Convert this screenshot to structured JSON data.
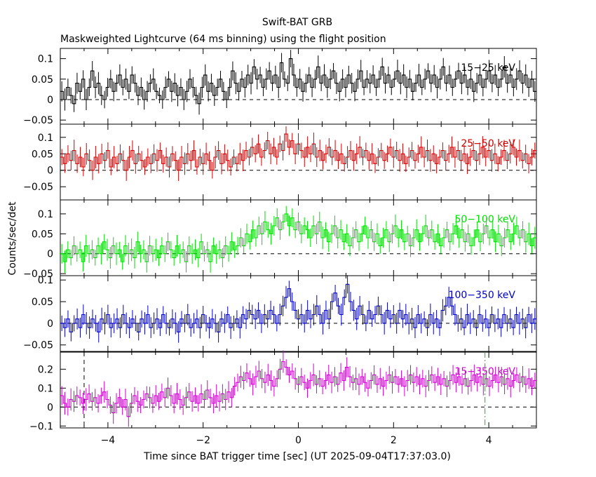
{
  "chart_data": {
    "type": "line",
    "title": "Swift-BAT GRB",
    "subtitle": "Maskweighted Lightcurve (64 ms binning) using the flight position",
    "xlabel": "Time since BAT trigger time [sec] (UT 2025-09-04T17:37:03.0)",
    "ylabel": "Counts/sec/det",
    "xlim": [
      -5,
      5
    ],
    "x_ticks": [
      -4,
      -2,
      0,
      2,
      4
    ],
    "x_tick_labels": [
      "−4",
      "−2",
      "0",
      "2",
      "4"
    ],
    "bin_width_s": 0.064,
    "markers": [
      {
        "x": -4.5,
        "panel": 4,
        "style": "dashed",
        "color": "#000000"
      },
      {
        "x": 3.92,
        "panel": 4,
        "style": "dash-dot",
        "color": "#00c800"
      }
    ],
    "panels": [
      {
        "name": "15−25 keV",
        "color": "#000000",
        "ylim": [
          -0.06,
          0.125
        ],
        "y_ticks": [
          -0.05,
          0,
          0.05,
          0.1
        ],
        "y_tick_labels": [
          "−0.05",
          "0",
          "0.05",
          "0.1"
        ],
        "values": [
          0.02,
          0.0,
          0.03,
          0.01,
          -0.01,
          0.04,
          0.02,
          0.05,
          0.0,
          0.03,
          0.07,
          0.03,
          0.04,
          0.01,
          0.0,
          0.03,
          0.05,
          0.02,
          0.04,
          0.06,
          0.03,
          0.05,
          0.02,
          0.06,
          0.04,
          0.01,
          0.03,
          0.0,
          0.02,
          0.04,
          0.05,
          0.02,
          0.01,
          0.0,
          0.03,
          0.05,
          0.02,
          0.04,
          0.01,
          0.03,
          0.0,
          0.02,
          0.05,
          0.03,
          0.01,
          -0.01,
          0.03,
          0.06,
          0.02,
          0.04,
          0.01,
          0.03,
          0.05,
          0.02,
          0.0,
          0.03,
          0.07,
          0.04,
          0.02,
          0.05,
          0.03,
          0.06,
          0.04,
          0.08,
          0.05,
          0.06,
          0.03,
          0.05,
          0.07,
          0.04,
          0.06,
          0.03,
          0.09,
          0.05,
          0.04,
          0.1,
          0.06,
          0.03,
          0.05,
          0.02,
          0.04,
          0.06,
          0.03,
          0.05,
          0.08,
          0.04,
          0.06,
          0.03,
          0.05,
          0.07,
          0.04,
          0.02,
          0.05,
          0.03,
          0.06,
          0.04,
          0.02,
          0.05,
          0.07,
          0.03,
          0.05,
          0.04,
          0.06,
          0.03,
          0.05,
          0.08,
          0.04,
          0.06,
          0.03,
          0.05,
          0.07,
          0.04,
          0.06,
          0.03,
          0.05,
          0.02,
          0.04,
          0.06,
          0.03,
          0.05,
          0.07,
          0.04,
          0.06,
          0.03,
          0.05,
          0.08,
          0.04,
          0.06,
          0.03,
          0.05,
          0.07,
          0.04,
          0.06,
          0.03,
          0.05,
          0.02,
          0.04,
          0.06,
          0.03,
          0.05,
          0.07,
          0.04,
          0.06,
          0.03,
          0.05,
          0.08,
          0.04,
          0.06,
          0.03,
          0.05,
          0.07,
          0.04,
          0.06,
          0.03,
          0.05,
          0.02
        ]
      },
      {
        "name": "25−50 keV",
        "color": "#d00000",
        "ylim": [
          -0.09,
          0.14
        ],
        "y_ticks": [
          -0.05,
          0,
          0.05,
          0.1
        ],
        "y_tick_labels": [
          "−0.05",
          "0",
          "0.05",
          "0.1"
        ],
        "values": [
          0.04,
          0.02,
          0.05,
          0.03,
          0.06,
          0.02,
          0.04,
          0.01,
          0.05,
          0.03,
          0.0,
          0.04,
          0.02,
          0.05,
          0.03,
          0.06,
          0.01,
          0.04,
          0.02,
          0.05,
          0.03,
          0.0,
          0.04,
          0.06,
          0.02,
          0.05,
          0.03,
          0.01,
          0.04,
          0.02,
          0.05,
          0.03,
          0.06,
          0.02,
          0.04,
          0.01,
          0.05,
          0.03,
          0.0,
          0.04,
          0.02,
          0.05,
          0.03,
          0.06,
          0.01,
          0.04,
          0.02,
          0.05,
          0.03,
          0.0,
          0.04,
          0.06,
          0.02,
          0.05,
          0.03,
          0.01,
          0.04,
          0.02,
          0.05,
          0.03,
          0.06,
          0.04,
          0.07,
          0.05,
          0.08,
          0.04,
          0.06,
          0.09,
          0.05,
          0.07,
          0.04,
          0.08,
          0.06,
          0.11,
          0.07,
          0.09,
          0.05,
          0.08,
          0.06,
          0.04,
          0.07,
          0.05,
          0.08,
          0.04,
          0.06,
          0.03,
          0.05,
          0.07,
          0.04,
          0.06,
          0.03,
          0.05,
          0.02,
          0.04,
          0.06,
          0.03,
          0.05,
          0.07,
          0.04,
          0.06,
          0.03,
          0.05,
          0.02,
          0.04,
          0.06,
          0.03,
          0.05,
          0.07,
          0.04,
          0.06,
          0.03,
          0.05,
          0.02,
          0.04,
          0.06,
          0.03,
          0.05,
          0.07,
          0.04,
          0.06,
          0.03,
          0.05,
          0.02,
          0.04,
          0.06,
          0.03,
          0.05,
          0.07,
          0.04,
          0.06,
          0.03,
          0.05,
          0.02,
          0.04,
          0.06,
          0.03,
          0.05,
          0.07,
          0.04,
          0.06,
          0.03,
          0.05,
          0.02,
          0.04,
          0.06,
          0.03,
          0.05,
          0.07,
          0.04,
          0.06,
          0.03,
          0.05,
          0.02,
          0.04,
          0.06
        ]
      },
      {
        "name": "50−100 keV",
        "color": "#00e000",
        "ylim": [
          -0.055,
          0.135
        ],
        "y_ticks": [
          -0.05,
          0,
          0.05,
          0.1
        ],
        "y_tick_labels": [
          "−0.05",
          "0",
          "0.05",
          "0.1"
        ],
        "values": [
          0.0,
          -0.02,
          0.01,
          -0.01,
          0.02,
          0.0,
          0.01,
          -0.02,
          0.02,
          0.0,
          0.01,
          -0.01,
          0.02,
          0.0,
          0.03,
          0.01,
          -0.01,
          0.02,
          0.0,
          0.01,
          -0.02,
          0.02,
          0.0,
          0.01,
          -0.01,
          0.03,
          0.0,
          0.01,
          -0.02,
          0.02,
          0.0,
          0.01,
          -0.01,
          0.02,
          0.0,
          0.03,
          0.01,
          -0.01,
          0.02,
          0.0,
          0.01,
          -0.02,
          0.02,
          0.0,
          0.01,
          -0.01,
          0.03,
          0.0,
          0.01,
          -0.02,
          0.02,
          0.0,
          0.01,
          -0.01,
          0.02,
          0.0,
          0.03,
          0.01,
          0.02,
          0.04,
          0.02,
          0.05,
          0.03,
          0.06,
          0.04,
          0.07,
          0.05,
          0.08,
          0.06,
          0.05,
          0.07,
          0.09,
          0.06,
          0.08,
          0.1,
          0.07,
          0.09,
          0.06,
          0.08,
          0.05,
          0.07,
          0.06,
          0.04,
          0.07,
          0.05,
          0.08,
          0.04,
          0.06,
          0.03,
          0.05,
          0.07,
          0.04,
          0.06,
          0.03,
          0.05,
          0.02,
          0.04,
          0.06,
          0.03,
          0.05,
          0.07,
          0.04,
          0.06,
          0.03,
          0.05,
          0.02,
          0.04,
          0.06,
          0.03,
          0.05,
          0.07,
          0.04,
          0.06,
          0.03,
          0.05,
          0.02,
          0.04,
          0.06,
          0.03,
          0.05,
          0.07,
          0.04,
          0.06,
          0.03,
          0.05,
          0.02,
          0.04,
          0.06,
          0.03,
          0.05,
          0.07,
          0.04,
          0.06,
          0.03,
          0.05,
          0.02,
          0.04,
          0.06,
          0.03,
          0.05,
          0.07,
          0.04,
          0.06,
          0.03,
          0.05,
          0.02,
          0.04,
          0.06,
          0.03,
          0.05,
          0.07,
          0.04,
          0.06,
          0.03,
          0.05,
          0.02,
          0.04
        ]
      },
      {
        "name": "100−350 keV",
        "color": "#0000c8",
        "ylim": [
          -0.065,
          0.11
        ],
        "y_ticks": [
          -0.05,
          0,
          0.05,
          0.1
        ],
        "y_tick_labels": [
          "−0.05",
          "0",
          "0.05",
          "0.1"
        ],
        "values": [
          0.0,
          -0.01,
          0.01,
          -0.02,
          0.0,
          0.01,
          -0.01,
          0.02,
          0.0,
          -0.01,
          0.01,
          0.0,
          -0.02,
          0.01,
          0.0,
          0.02,
          -0.01,
          0.0,
          0.01,
          -0.01,
          0.02,
          0.0,
          -0.01,
          0.01,
          0.0,
          -0.02,
          0.01,
          0.0,
          0.02,
          -0.01,
          0.0,
          0.01,
          -0.01,
          0.02,
          0.0,
          -0.01,
          0.01,
          0.0,
          -0.02,
          0.01,
          0.0,
          0.02,
          -0.01,
          0.0,
          0.01,
          -0.01,
          0.02,
          0.0,
          -0.01,
          0.01,
          0.0,
          -0.02,
          0.01,
          0.0,
          0.02,
          -0.01,
          0.0,
          0.01,
          -0.01,
          0.02,
          0.01,
          0.03,
          0.02,
          0.01,
          0.03,
          0.0,
          0.02,
          0.01,
          0.03,
          0.02,
          0.0,
          0.02,
          0.04,
          0.06,
          0.08,
          0.05,
          0.03,
          0.01,
          0.02,
          0.0,
          0.03,
          0.01,
          0.02,
          0.04,
          0.02,
          0.0,
          0.03,
          0.01,
          0.05,
          0.07,
          0.04,
          0.02,
          0.06,
          0.09,
          0.05,
          0.03,
          0.01,
          0.04,
          0.02,
          0.0,
          0.03,
          0.01,
          0.02,
          0.04,
          0.02,
          0.0,
          0.03,
          0.01,
          0.02,
          0.0,
          0.03,
          0.01,
          0.02,
          0.0,
          0.01,
          -0.01,
          0.02,
          0.0,
          0.01,
          -0.01,
          0.02,
          0.0,
          0.01,
          -0.01,
          0.03,
          0.04,
          0.06,
          0.04,
          0.02,
          0.0,
          0.01,
          -0.01,
          0.02,
          0.0,
          0.01,
          -0.01,
          0.02,
          0.0,
          0.01,
          -0.01,
          0.02,
          0.0,
          0.01,
          -0.01,
          0.02,
          0.0,
          0.01,
          -0.01,
          0.02,
          0.0,
          0.01,
          -0.01,
          0.02,
          0.0,
          0.01
        ]
      },
      {
        "name": "15−350 keV",
        "color": "#d000d0",
        "ylim": [
          -0.11,
          0.29
        ],
        "y_ticks": [
          -0.1,
          0,
          0.1,
          0.2
        ],
        "y_tick_labels": [
          "−0.1",
          "0",
          "0.1",
          "0.2"
        ],
        "values": [
          0.06,
          0.02,
          0.0,
          0.04,
          0.03,
          0.06,
          0.05,
          0.02,
          0.04,
          0.07,
          0.03,
          0.05,
          0.02,
          0.06,
          0.08,
          0.04,
          0.01,
          -0.03,
          0.02,
          0.05,
          0.0,
          0.04,
          -0.05,
          0.02,
          0.06,
          0.03,
          0.01,
          0.04,
          0.07,
          0.05,
          0.02,
          0.06,
          0.03,
          0.08,
          0.05,
          0.1,
          0.06,
          0.02,
          0.07,
          0.04,
          0.01,
          0.05,
          0.08,
          0.03,
          0.06,
          0.02,
          0.07,
          0.04,
          0.09,
          0.05,
          0.02,
          0.06,
          0.03,
          0.07,
          0.04,
          0.08,
          0.05,
          0.11,
          0.13,
          0.16,
          0.14,
          0.18,
          0.15,
          0.12,
          0.16,
          0.19,
          0.15,
          0.13,
          0.17,
          0.14,
          0.11,
          0.15,
          0.2,
          0.24,
          0.21,
          0.17,
          0.19,
          0.15,
          0.12,
          0.16,
          0.13,
          0.1,
          0.14,
          0.17,
          0.12,
          0.15,
          0.11,
          0.14,
          0.17,
          0.13,
          0.16,
          0.12,
          0.18,
          0.14,
          0.21,
          0.16,
          0.13,
          0.15,
          0.12,
          0.16,
          0.13,
          0.1,
          0.14,
          0.17,
          0.12,
          0.15,
          0.11,
          0.14,
          0.17,
          0.13,
          0.16,
          0.12,
          0.15,
          0.11,
          0.14,
          0.17,
          0.13,
          0.16,
          0.12,
          0.15,
          0.11,
          0.14,
          0.17,
          0.13,
          0.16,
          0.12,
          0.15,
          0.11,
          0.14,
          0.17,
          0.13,
          0.16,
          0.12,
          0.15,
          0.11,
          0.14,
          0.17,
          0.13,
          0.16,
          0.12,
          0.15,
          0.11,
          0.14,
          0.17,
          0.13,
          0.16,
          0.12,
          0.15,
          0.11,
          0.14,
          0.17,
          0.13,
          0.16,
          0.12,
          0.15,
          0.11,
          0.14
        ]
      }
    ]
  }
}
